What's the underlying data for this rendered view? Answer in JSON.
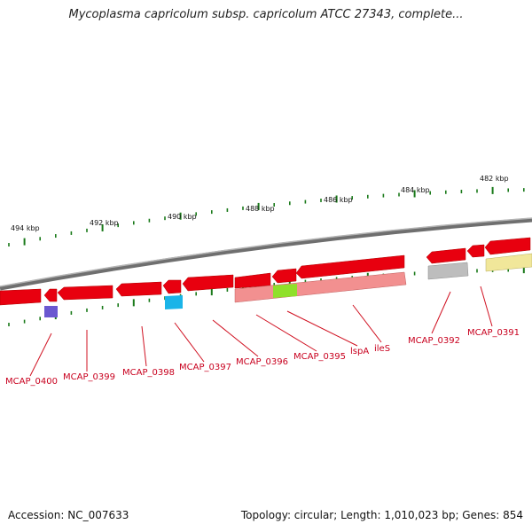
{
  "title": "Mycoplasma capricolum subsp. capricolum ATCC 27343, complete...",
  "footer": {
    "accession": "Accession: NC_007633",
    "summary": "Topology: circular; Length: 1,010,023 bp; Genes: 854"
  },
  "colors": {
    "cds_forward": "#e8000f",
    "cds_reverse": "#e8000f",
    "rna_light": "#f08a8a",
    "backbone": "#888888",
    "tick": "#1a7a1a",
    "label": "#c8001e",
    "purple_feature": "#6a58d0",
    "cyan_feature": "#1ab4e8",
    "green_feature": "#8fe02a",
    "gray_feature": "#b8b8b8",
    "yellow_feature": "#f1e79a"
  },
  "ticks": {
    "labels": [
      "494 kbp",
      "492 kbp",
      "490 kbp",
      "488 kbp",
      "486 kbp",
      "484 kbp",
      "482 kbp"
    ]
  },
  "genes": [
    {
      "label": "MCAP_0400"
    },
    {
      "label": "MCAP_0399"
    },
    {
      "label": "MCAP_0398"
    },
    {
      "label": "MCAP_0397"
    },
    {
      "label": "MCAP_0396"
    },
    {
      "label": "MCAP_0395"
    },
    {
      "label": "lspA"
    },
    {
      "label": "ileS"
    },
    {
      "label": "MCAP_0392"
    },
    {
      "label": "MCAP_0391"
    }
  ]
}
